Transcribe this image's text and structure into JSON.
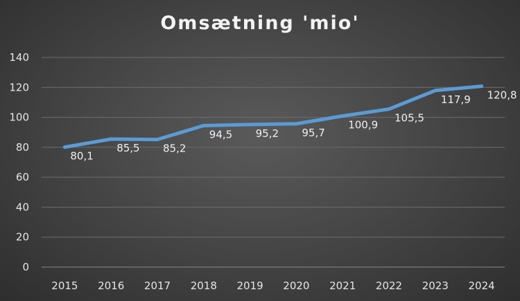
{
  "chart_data": {
    "type": "line",
    "title": "Omsætning 'mio'",
    "xlabel": "",
    "ylabel": "",
    "x": [
      "2015",
      "2016",
      "2017",
      "2018",
      "2019",
      "2020",
      "2021",
      "2022",
      "2023",
      "2024"
    ],
    "series": [
      {
        "values": [
          80.1,
          85.5,
          85.2,
          94.5,
          95.2,
          95.7,
          100.9,
          105.5,
          117.9,
          120.8
        ],
        "labels": [
          "80,1",
          "85,5",
          "85,2",
          "94,5",
          "95,2",
          "95,7",
          "100,9",
          "105,5",
          "117,9",
          "120,8"
        ]
      }
    ],
    "ylim": [
      0,
      140
    ],
    "yticks": [
      "0",
      "20",
      "40",
      "60",
      "80",
      "100",
      "120",
      "140"
    ],
    "grid": true,
    "legend": "none",
    "colors": {
      "line": "#5b9bd5",
      "grid": "#6e6e6e",
      "axis": "#8a8a8a"
    }
  }
}
